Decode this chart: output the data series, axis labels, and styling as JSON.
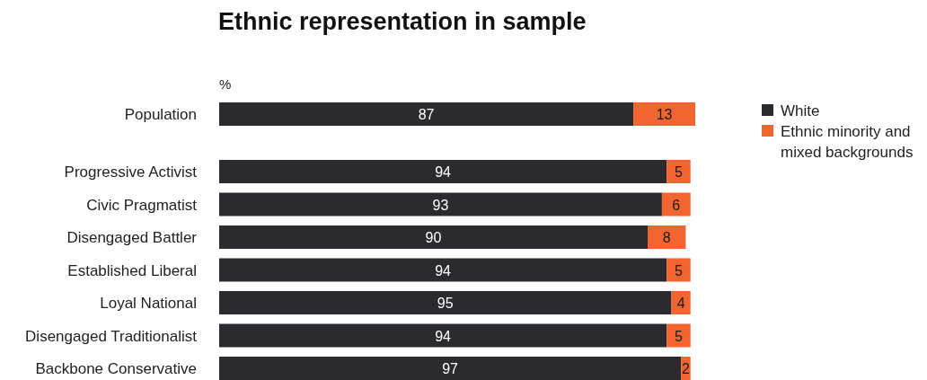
{
  "chart_data": {
    "type": "bar",
    "orientation": "horizontal",
    "stacked": true,
    "title": "Ethnic representation in sample",
    "xlabel": "%",
    "categories": [
      "Population",
      "Progressive Activist",
      "Civic Pragmatist",
      "Disengaged Battler",
      "Established Liberal",
      "Loyal National",
      "Disengaged Traditionalist",
      "Backbone Conservative"
    ],
    "series": [
      {
        "name": "White",
        "color": "#2b2a2e",
        "values": [
          87,
          94,
          93,
          90,
          94,
          95,
          94,
          97
        ]
      },
      {
        "name": "Ethnic minority and mixed backgrounds",
        "color": "#f26430",
        "values": [
          13,
          5,
          6,
          8,
          5,
          4,
          5,
          2
        ]
      }
    ],
    "data_labels": true,
    "legend": "right"
  }
}
